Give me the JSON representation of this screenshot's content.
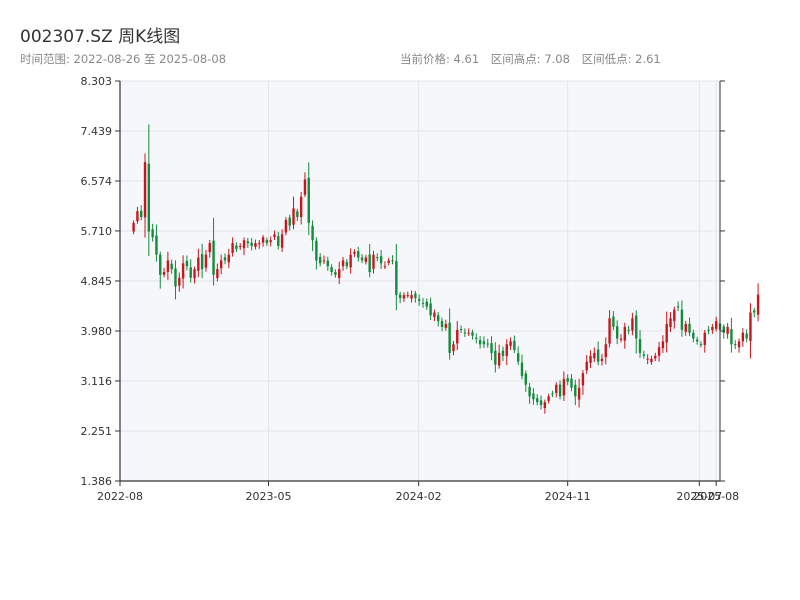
{
  "header": {
    "title": "002307.SZ 周K线图",
    "range_label": "时间范围: 2022-08-26 至 2025-08-08",
    "current_price_label": "当前价格: 4.61",
    "high_label": "区间高点: 7.08",
    "low_label": "区间低点: 2.61"
  },
  "colors": {
    "up": "#c8161d",
    "down": "#148a3c",
    "plot_bg": "#f5f7fa",
    "grid": "#e3e6ea",
    "axis": "#333333"
  },
  "chart_data": {
    "type": "candlestick",
    "title": "002307.SZ 周K线图",
    "ylim": [
      1.386,
      8.303
    ],
    "y_ticks": [
      "1.386",
      "2.251",
      "3.116",
      "3.980",
      "4.845",
      "5.710",
      "6.574",
      "7.439",
      "8.303"
    ],
    "x_ticks": [
      {
        "label": "2022-08",
        "date": "2022-08-01"
      },
      {
        "label": "2023-05",
        "date": "2023-05-01"
      },
      {
        "label": "2024-02",
        "date": "2024-02-01"
      },
      {
        "label": "2024-11",
        "date": "2024-11-01"
      },
      {
        "label": "2025-07",
        "date": "2025-07-01"
      },
      {
        "label": "2025-08",
        "date": "2025-08-01"
      }
    ],
    "x_range": [
      "2022-08-01",
      "2025-08-08"
    ],
    "start_date": "2022-08-26",
    "weekly_close": [
      5.85,
      6.05,
      5.95,
      6.9,
      5.7,
      5.6,
      5.3,
      4.95,
      5.0,
      5.2,
      5.05,
      4.75,
      4.9,
      5.15,
      5.1,
      4.9,
      5.05,
      5.25,
      5.05,
      5.3,
      5.5,
      4.95,
      5.05,
      5.2,
      5.2,
      5.3,
      5.5,
      5.4,
      5.45,
      5.55,
      5.5,
      5.45,
      5.5,
      5.5,
      5.6,
      5.5,
      5.55,
      5.65,
      5.45,
      5.65,
      5.9,
      5.8,
      6.1,
      5.95,
      6.3,
      6.6,
      5.85,
      5.55,
      5.2,
      5.15,
      5.2,
      5.1,
      5.0,
      4.95,
      5.05,
      5.2,
      5.1,
      5.3,
      5.35,
      5.25,
      5.2,
      5.25,
      5.0,
      5.3,
      5.25,
      5.15,
      5.1,
      5.2,
      5.2,
      4.6,
      4.55,
      4.6,
      4.6,
      4.6,
      4.55,
      4.5,
      4.45,
      4.4,
      4.25,
      4.3,
      4.15,
      4.05,
      4.1,
      3.6,
      3.75,
      4.0,
      4.0,
      3.95,
      3.95,
      3.9,
      3.85,
      3.75,
      3.75,
      3.75,
      3.6,
      3.4,
      3.6,
      3.55,
      3.75,
      3.8,
      3.65,
      3.45,
      3.2,
      3.05,
      2.85,
      2.8,
      2.75,
      2.7,
      2.75,
      2.85,
      2.9,
      3.05,
      2.85,
      3.15,
      3.1,
      3.0,
      2.85,
      3.0,
      3.25,
      3.45,
      3.55,
      3.6,
      3.45,
      3.5,
      3.75,
      4.2,
      4.05,
      3.85,
      3.85,
      4.05,
      4.0,
      4.2,
      3.85,
      3.6,
      3.55,
      3.5,
      3.5,
      3.55,
      3.7,
      3.8,
      4.1,
      4.2,
      4.35,
      4.4,
      4.0,
      4.1,
      3.95,
      3.85,
      3.8,
      3.75,
      3.95,
      4.0,
      4.05,
      4.15,
      4.0,
      3.95,
      4.05,
      3.75,
      3.75,
      3.8,
      3.95,
      3.85,
      4.3,
      4.3,
      4.61
    ]
  }
}
